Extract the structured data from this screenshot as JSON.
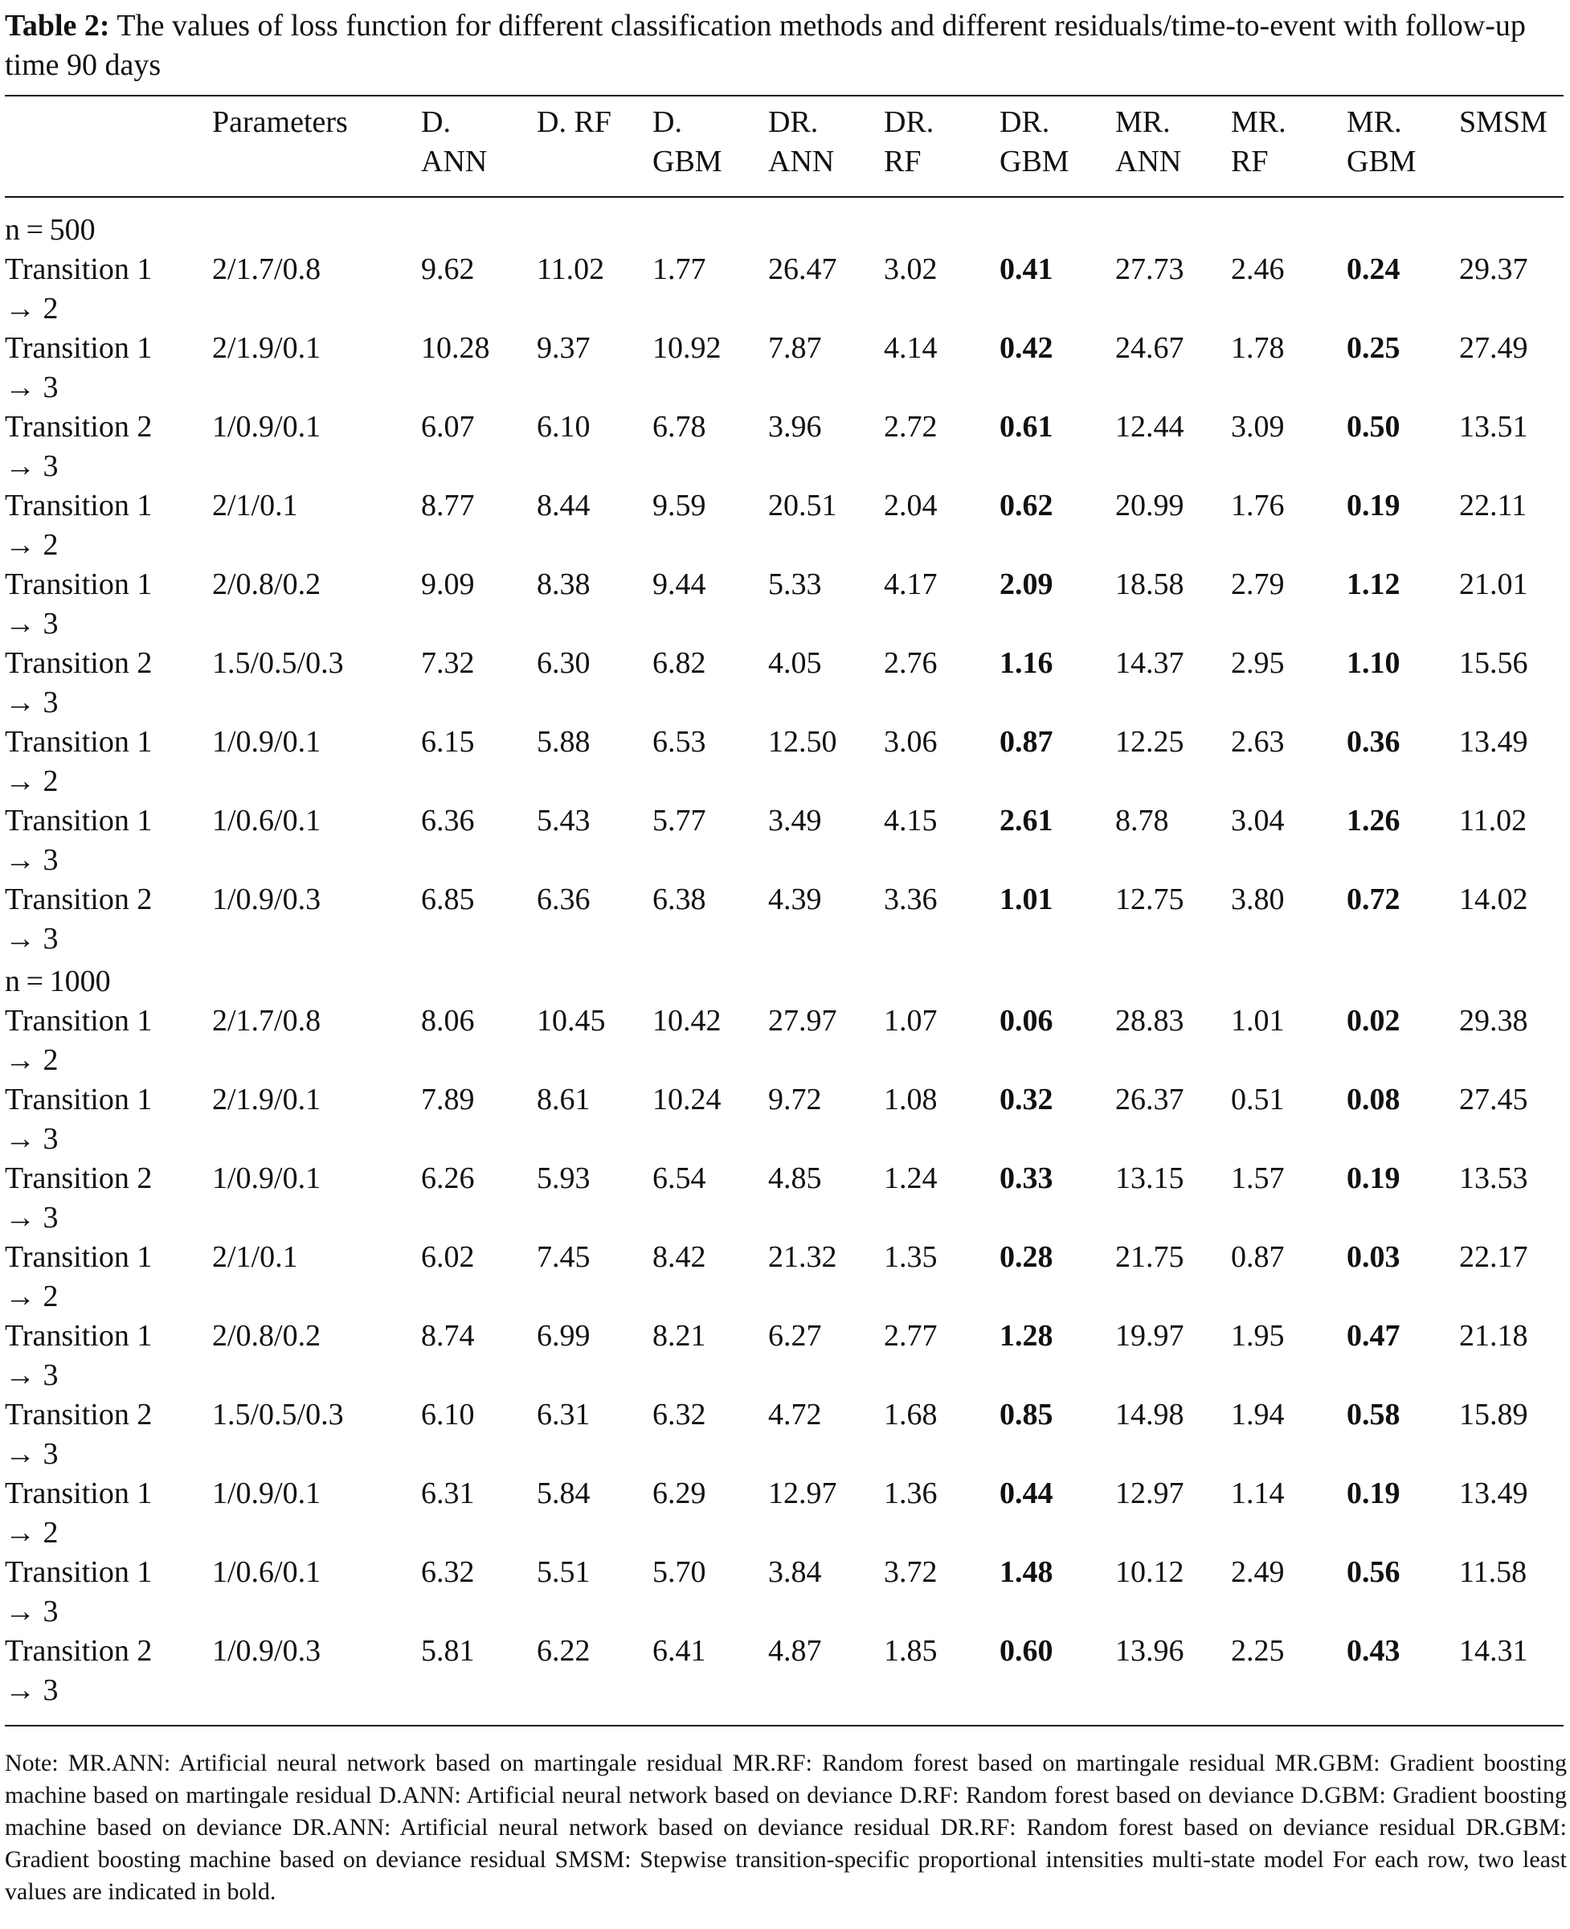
{
  "caption": {
    "label": "Table 2:",
    "text": " The values of loss function for different classification methods and different residuals/time-to-event with follow-up time 90 days"
  },
  "columns": [
    "",
    "Parameters",
    "D.\nANN",
    "D. RF",
    "D.\nGBM",
    "DR.\nANN",
    "DR.\nRF",
    "DR.\nGBM",
    "MR.\nANN",
    "MR.\nRF",
    "MR.\nGBM",
    "SMSM"
  ],
  "groups": [
    {
      "label": "n = 500",
      "rows": [
        {
          "transition": "Transition 1\n→ 2",
          "params": "2/1.7/0.8",
          "values": [
            "9.62",
            "11.02",
            "1.77",
            "26.47",
            "3.02",
            "0.41",
            "27.73",
            "2.46",
            "0.24",
            "29.37"
          ]
        },
        {
          "transition": "Transition 1\n→ 3",
          "params": "2/1.9/0.1",
          "values": [
            "10.28",
            "9.37",
            "10.92",
            "7.87",
            "4.14",
            "0.42",
            "24.67",
            "1.78",
            "0.25",
            "27.49"
          ]
        },
        {
          "transition": "Transition 2\n→ 3",
          "params": "1/0.9/0.1",
          "values": [
            "6.07",
            "6.10",
            "6.78",
            "3.96",
            "2.72",
            "0.61",
            "12.44",
            "3.09",
            "0.50",
            "13.51"
          ]
        },
        {
          "transition": "Transition 1\n→ 2",
          "params": "2/1/0.1",
          "values": [
            "8.77",
            "8.44",
            "9.59",
            "20.51",
            "2.04",
            "0.62",
            "20.99",
            "1.76",
            "0.19",
            "22.11"
          ]
        },
        {
          "transition": "Transition 1\n→ 3",
          "params": "2/0.8/0.2",
          "values": [
            "9.09",
            "8.38",
            "9.44",
            "5.33",
            "4.17",
            "2.09",
            "18.58",
            "2.79",
            "1.12",
            "21.01"
          ]
        },
        {
          "transition": "Transition 2\n→ 3",
          "params": "1.5/0.5/0.3",
          "values": [
            "7.32",
            "6.30",
            "6.82",
            "4.05",
            "2.76",
            "1.16",
            "14.37",
            "2.95",
            "1.10",
            "15.56"
          ]
        },
        {
          "transition": "Transition 1\n→ 2",
          "params": "1/0.9/0.1",
          "values": [
            "6.15",
            "5.88",
            "6.53",
            "12.50",
            "3.06",
            "0.87",
            "12.25",
            "2.63",
            "0.36",
            "13.49"
          ]
        },
        {
          "transition": "Transition 1\n→ 3",
          "params": "1/0.6/0.1",
          "values": [
            "6.36",
            "5.43",
            "5.77",
            "3.49",
            "4.15",
            "2.61",
            "8.78",
            "3.04",
            "1.26",
            "11.02"
          ]
        },
        {
          "transition": "Transition 2\n→ 3",
          "params": "1/0.9/0.3",
          "values": [
            "6.85",
            "6.36",
            "6.38",
            "4.39",
            "3.36",
            "1.01",
            "12.75",
            "3.80",
            "0.72",
            "14.02"
          ]
        }
      ]
    },
    {
      "label": "n = 1000",
      "rows": [
        {
          "transition": "Transition 1\n→ 2",
          "params": "2/1.7/0.8",
          "values": [
            "8.06",
            "10.45",
            "10.42",
            "27.97",
            "1.07",
            "0.06",
            "28.83",
            "1.01",
            "0.02",
            "29.38"
          ]
        },
        {
          "transition": "Transition 1\n→ 3",
          "params": "2/1.9/0.1",
          "values": [
            "7.89",
            "8.61",
            "10.24",
            "9.72",
            "1.08",
            "0.32",
            "26.37",
            "0.51",
            "0.08",
            "27.45"
          ]
        },
        {
          "transition": "Transition 2\n→ 3",
          "params": "1/0.9/0.1",
          "values": [
            "6.26",
            "5.93",
            "6.54",
            "4.85",
            "1.24",
            "0.33",
            "13.15",
            "1.57",
            "0.19",
            "13.53"
          ]
        },
        {
          "transition": "Transition 1\n→ 2",
          "params": "2/1/0.1",
          "values": [
            "6.02",
            "7.45",
            "8.42",
            "21.32",
            "1.35",
            "0.28",
            "21.75",
            "0.87",
            "0.03",
            "22.17"
          ]
        },
        {
          "transition": "Transition 1\n→ 3",
          "params": "2/0.8/0.2",
          "values": [
            "8.74",
            "6.99",
            "8.21",
            "6.27",
            "2.77",
            "1.28",
            "19.97",
            "1.95",
            "0.47",
            "21.18"
          ]
        },
        {
          "transition": "Transition 2\n→ 3",
          "params": "1.5/0.5/0.3",
          "values": [
            "6.10",
            "6.31",
            "6.32",
            "4.72",
            "1.68",
            "0.85",
            "14.98",
            "1.94",
            "0.58",
            "15.89"
          ]
        },
        {
          "transition": "Transition 1\n→ 2",
          "params": "1/0.9/0.1",
          "values": [
            "6.31",
            "5.84",
            "6.29",
            "12.97",
            "1.36",
            "0.44",
            "12.97",
            "1.14",
            "0.19",
            "13.49"
          ]
        },
        {
          "transition": "Transition 1\n→ 3",
          "params": "1/0.6/0.1",
          "values": [
            "6.32",
            "5.51",
            "5.70",
            "3.84",
            "3.72",
            "1.48",
            "10.12",
            "2.49",
            "0.56",
            "11.58"
          ]
        },
        {
          "transition": "Transition 2\n→ 3",
          "params": "1/0.9/0.3",
          "values": [
            "5.81",
            "6.22",
            "6.41",
            "4.87",
            "1.85",
            "0.60",
            "13.96",
            "2.25",
            "0.43",
            "14.31"
          ]
        }
      ]
    }
  ],
  "bold_columns": [
    5,
    8
  ],
  "note": "Note: MR.ANN: Artificial neural network based on martingale residual MR.RF: Random forest based on martingale residual MR.GBM: Gradient boosting machine based on martingale residual D.ANN: Artificial neural network based on deviance D.RF: Random forest based on deviance D.GBM: Gradient boosting machine based on deviance DR.ANN: Artificial neural network based on deviance residual DR.RF: Random forest based on deviance residual DR.GBM: Gradient boosting machine based on deviance residual SMSM: Stepwise transition-specific proportional intensities multi-state model For each row, two least values are indicated in bold."
}
